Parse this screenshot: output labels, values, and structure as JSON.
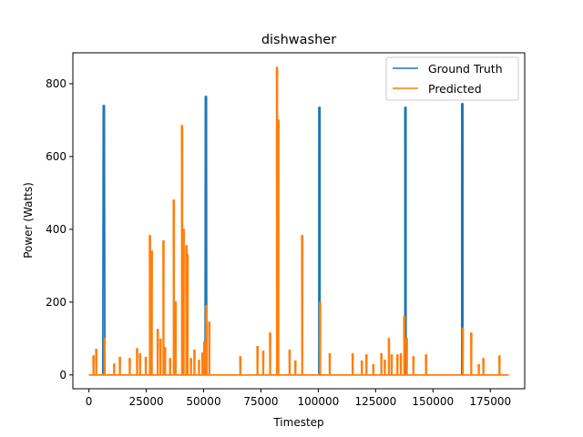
{
  "chart_data": {
    "type": "line",
    "title": "dishwasher",
    "xlabel": "Timestep",
    "ylabel": "Power (Watts)",
    "xlim": [
      -7000,
      190000
    ],
    "ylim": [
      -38,
      885
    ],
    "xticks": [
      0,
      25000,
      50000,
      75000,
      100000,
      125000,
      150000,
      175000
    ],
    "xtick_labels": [
      "0",
      "25000",
      "50000",
      "75000",
      "100000",
      "125000",
      "150000",
      "175000"
    ],
    "yticks": [
      0,
      200,
      400,
      600,
      800
    ],
    "ytick_labels": [
      "0",
      "200",
      "400",
      "600",
      "800"
    ],
    "legend_position": "top-right",
    "series": [
      {
        "name": "Ground Truth",
        "color": "#1f77b4",
        "baseline": 0,
        "x_end": 183000,
        "spikes": [
          {
            "x": 6500,
            "peak": 740,
            "width": 900
          },
          {
            "x": 51000,
            "peak": 765,
            "width": 700
          },
          {
            "x": 100500,
            "peak": 735,
            "width": 500
          },
          {
            "x": 138000,
            "peak": 735,
            "width": 500
          },
          {
            "x": 162800,
            "peak": 745,
            "width": 500
          }
        ]
      },
      {
        "name": "Predicted",
        "color": "#ff7f0e",
        "baseline": 0,
        "x_end": 183000,
        "spikes": [
          {
            "x": 2000,
            "peak": 52
          },
          {
            "x": 3200,
            "peak": 70
          },
          {
            "x": 6800,
            "peak": 100
          },
          {
            "x": 11000,
            "peak": 30
          },
          {
            "x": 13500,
            "peak": 48
          },
          {
            "x": 17800,
            "peak": 45
          },
          {
            "x": 21000,
            "peak": 72
          },
          {
            "x": 22300,
            "peak": 58
          },
          {
            "x": 24800,
            "peak": 48
          },
          {
            "x": 26600,
            "peak": 383
          },
          {
            "x": 27400,
            "peak": 340
          },
          {
            "x": 30000,
            "peak": 125
          },
          {
            "x": 31200,
            "peak": 98
          },
          {
            "x": 32500,
            "peak": 368
          },
          {
            "x": 33200,
            "peak": 75
          },
          {
            "x": 35400,
            "peak": 45
          },
          {
            "x": 37000,
            "peak": 480
          },
          {
            "x": 37800,
            "peak": 200
          },
          {
            "x": 40600,
            "peak": 685
          },
          {
            "x": 41300,
            "peak": 400
          },
          {
            "x": 42500,
            "peak": 355
          },
          {
            "x": 43000,
            "peak": 330
          },
          {
            "x": 44500,
            "peak": 45
          },
          {
            "x": 46000,
            "peak": 68
          },
          {
            "x": 48000,
            "peak": 40
          },
          {
            "x": 49500,
            "peak": 60
          },
          {
            "x": 50300,
            "peak": 90
          },
          {
            "x": 51200,
            "peak": 190
          },
          {
            "x": 52500,
            "peak": 145
          },
          {
            "x": 66000,
            "peak": 50
          },
          {
            "x": 73500,
            "peak": 78
          },
          {
            "x": 76000,
            "peak": 65
          },
          {
            "x": 79000,
            "peak": 115
          },
          {
            "x": 82000,
            "peak": 845
          },
          {
            "x": 82600,
            "peak": 700
          },
          {
            "x": 87500,
            "peak": 68
          },
          {
            "x": 90000,
            "peak": 38
          },
          {
            "x": 93000,
            "peak": 383
          },
          {
            "x": 100800,
            "peak": 200
          },
          {
            "x": 105000,
            "peak": 58
          },
          {
            "x": 115000,
            "peak": 58
          },
          {
            "x": 119000,
            "peak": 38
          },
          {
            "x": 121000,
            "peak": 55
          },
          {
            "x": 124000,
            "peak": 28
          },
          {
            "x": 127500,
            "peak": 58
          },
          {
            "x": 129000,
            "peak": 40
          },
          {
            "x": 130800,
            "peak": 100
          },
          {
            "x": 132000,
            "peak": 55
          },
          {
            "x": 134500,
            "peak": 55
          },
          {
            "x": 136000,
            "peak": 58
          },
          {
            "x": 137500,
            "peak": 160
          },
          {
            "x": 138600,
            "peak": 100
          },
          {
            "x": 141500,
            "peak": 50
          },
          {
            "x": 147000,
            "peak": 55
          },
          {
            "x": 163000,
            "peak": 128
          },
          {
            "x": 166700,
            "peak": 115
          },
          {
            "x": 170000,
            "peak": 28
          },
          {
            "x": 172000,
            "peak": 45
          },
          {
            "x": 179000,
            "peak": 52
          }
        ]
      }
    ]
  }
}
